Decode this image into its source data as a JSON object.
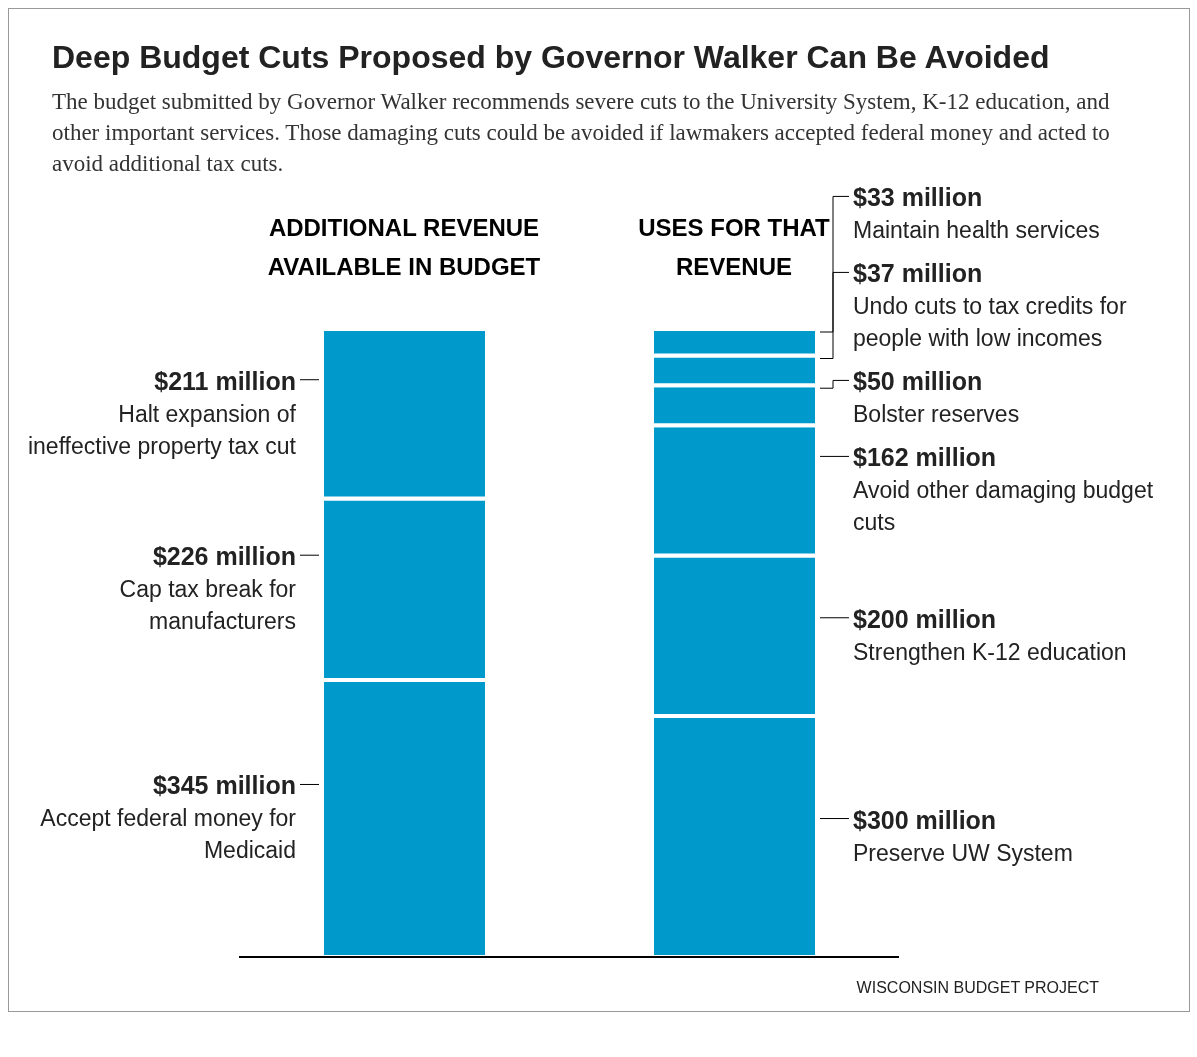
{
  "chart_data": {
    "type": "bar",
    "stacked": true,
    "title": "Deep Budget Cuts Proposed by Governor Walker Can Be Avoided",
    "subtitle": "The budget submitted by Governor Walker recommends severe cuts to the University System, K-12 education, and other important services. Those damaging cuts could be avoided if lawmakers accepted federal money and acted to avoid additional tax cuts.",
    "categories": [
      "ADDITIONAL REVENUE AVAILABLE IN BUDGET",
      "USES FOR THAT REVENUE"
    ],
    "series": [
      {
        "name": "Accept federal money for Medicaid",
        "color": "#0099cc",
        "values": [
          345,
          null
        ],
        "value_labels": [
          "$345 million",
          null
        ]
      },
      {
        "name": "Cap tax break for manufacturers",
        "color": "#0099cc",
        "values": [
          226,
          null
        ],
        "value_labels": [
          "$226 million",
          null
        ]
      },
      {
        "name": "Halt expansion of ineffective property tax cut",
        "color": "#0099cc",
        "values": [
          211,
          null
        ],
        "value_labels": [
          "$211 million",
          null
        ]
      },
      {
        "name": "Preserve UW System",
        "color": "#0099cc",
        "values": [
          null,
          300
        ],
        "value_labels": [
          null,
          "$300 million"
        ]
      },
      {
        "name": "Strengthen K-12 education",
        "color": "#0099cc",
        "values": [
          null,
          200
        ],
        "value_labels": [
          null,
          "$200 million"
        ]
      },
      {
        "name": "Avoid other damaging budget cuts",
        "color": "#0099cc",
        "values": [
          null,
          162
        ],
        "value_labels": [
          null,
          "$162 million"
        ]
      },
      {
        "name": "Bolster reserves",
        "color": "#0099cc",
        "values": [
          null,
          50
        ],
        "value_labels": [
          null,
          "$50 million"
        ]
      },
      {
        "name": "Undo cuts to tax credits for people with low incomes",
        "color": "#0099cc",
        "values": [
          null,
          37
        ],
        "value_labels": [
          null,
          "$37 million"
        ]
      },
      {
        "name": "Maintain health services",
        "color": "#0099cc",
        "values": [
          null,
          33
        ],
        "value_labels": [
          null,
          "$33 million"
        ]
      }
    ],
    "annotations": [
      "WISCONSIN BUDGET PROJECT"
    ]
  }
}
